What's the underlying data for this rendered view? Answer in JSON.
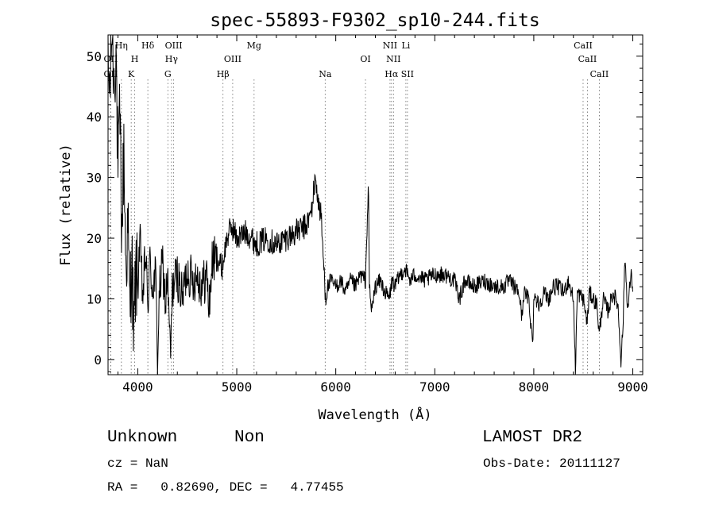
{
  "chart_data": {
    "type": "line",
    "title": "spec-55893-F9302_sp10-244.fits",
    "xlabel": "Wavelength (Å)",
    "ylabel": "Flux (relative)",
    "xlim": [
      3700,
      9100
    ],
    "ylim": [
      -2.5,
      53.5
    ],
    "xticks": [
      4000,
      5000,
      6000,
      7000,
      8000,
      9000
    ],
    "yticks": [
      0,
      10,
      20,
      30,
      40,
      50
    ],
    "grid": false,
    "series": [
      {
        "name": "",
        "anchors": [
          [
            3700,
            47
          ],
          [
            3720,
            45
          ],
          [
            3740,
            55
          ],
          [
            3760,
            46
          ],
          [
            3780,
            52
          ],
          [
            3800,
            30
          ],
          [
            3820,
            40
          ],
          [
            3840,
            20
          ],
          [
            3860,
            35
          ],
          [
            3880,
            15
          ],
          [
            3900,
            22
          ],
          [
            3920,
            8
          ],
          [
            3940,
            18
          ],
          [
            3960,
            2
          ],
          [
            3980,
            15
          ],
          [
            4000,
            12
          ],
          [
            4020,
            20
          ],
          [
            4050,
            10
          ],
          [
            4080,
            18
          ],
          [
            4100,
            8
          ],
          [
            4120,
            16
          ],
          [
            4150,
            12
          ],
          [
            4180,
            14
          ],
          [
            4200,
            0
          ],
          [
            4220,
            11
          ],
          [
            4250,
            16
          ],
          [
            4280,
            9
          ],
          [
            4300,
            14
          ],
          [
            4330,
            0
          ],
          [
            4350,
            12
          ],
          [
            4400,
            14
          ],
          [
            4450,
            10
          ],
          [
            4500,
            15
          ],
          [
            4550,
            13
          ],
          [
            4600,
            14
          ],
          [
            4650,
            12
          ],
          [
            4700,
            14
          ],
          [
            4720,
            8
          ],
          [
            4750,
            16
          ],
          [
            4800,
            17
          ],
          [
            4850,
            15
          ],
          [
            4900,
            20
          ],
          [
            4950,
            22
          ],
          [
            5000,
            20
          ],
          [
            5100,
            21
          ],
          [
            5200,
            19
          ],
          [
            5300,
            20
          ],
          [
            5400,
            19
          ],
          [
            5500,
            20
          ],
          [
            5600,
            21
          ],
          [
            5700,
            22
          ],
          [
            5750,
            24
          ],
          [
            5780,
            28
          ],
          [
            5800,
            30
          ],
          [
            5820,
            26
          ],
          [
            5850,
            24
          ],
          [
            5880,
            15
          ],
          [
            5900,
            10
          ],
          [
            5920,
            12
          ],
          [
            5950,
            13
          ],
          [
            6000,
            12
          ],
          [
            6050,
            13
          ],
          [
            6100,
            11
          ],
          [
            6150,
            13
          ],
          [
            6200,
            12
          ],
          [
            6250,
            14
          ],
          [
            6300,
            13
          ],
          [
            6330,
            29
          ],
          [
            6340,
            12
          ],
          [
            6360,
            8
          ],
          [
            6400,
            12
          ],
          [
            6450,
            13
          ],
          [
            6500,
            11
          ],
          [
            6540,
            10
          ],
          [
            6570,
            13
          ],
          [
            6600,
            12
          ],
          [
            6650,
            14
          ],
          [
            6700,
            15
          ],
          [
            6750,
            13
          ],
          [
            6800,
            14
          ],
          [
            6900,
            13
          ],
          [
            7000,
            14
          ],
          [
            7100,
            14
          ],
          [
            7200,
            13
          ],
          [
            7250,
            10
          ],
          [
            7300,
            13
          ],
          [
            7400,
            12
          ],
          [
            7500,
            13
          ],
          [
            7600,
            12
          ],
          [
            7700,
            12
          ],
          [
            7750,
            13
          ],
          [
            7850,
            11
          ],
          [
            7880,
            7
          ],
          [
            7900,
            11
          ],
          [
            7950,
            10
          ],
          [
            7990,
            2
          ],
          [
            8000,
            11
          ],
          [
            8050,
            9
          ],
          [
            8100,
            11
          ],
          [
            8150,
            10
          ],
          [
            8200,
            12
          ],
          [
            8250,
            12
          ],
          [
            8300,
            11
          ],
          [
            8350,
            13
          ],
          [
            8400,
            10
          ],
          [
            8420,
            -2
          ],
          [
            8440,
            11
          ],
          [
            8500,
            10
          ],
          [
            8540,
            6
          ],
          [
            8560,
            11
          ],
          [
            8600,
            10
          ],
          [
            8640,
            9
          ],
          [
            8660,
            4
          ],
          [
            8700,
            10
          ],
          [
            8750,
            8
          ],
          [
            8800,
            11
          ],
          [
            8850,
            9
          ],
          [
            8880,
            0
          ],
          [
            8900,
            5
          ],
          [
            8920,
            17
          ],
          [
            8950,
            8
          ],
          [
            8980,
            14
          ],
          [
            9000,
            12
          ]
        ]
      }
    ],
    "lines": [
      {
        "label": "OII",
        "x": 3727,
        "row": 1
      },
      {
        "label": "OII",
        "x": 3727,
        "row": 2
      },
      {
        "label": "Hη",
        "x": 3835,
        "row": 0
      },
      {
        "label": "H",
        "x": 3969,
        "row": 1
      },
      {
        "label": "K",
        "x": 3934,
        "row": 2
      },
      {
        "label": "Hδ",
        "x": 4102,
        "row": 0
      },
      {
        "label": "OIII",
        "x": 4363,
        "row": 0
      },
      {
        "label": "Hγ",
        "x": 4341,
        "row": 1
      },
      {
        "label": "G",
        "x": 4304,
        "row": 2
      },
      {
        "label": "Hβ",
        "x": 4861,
        "row": 2
      },
      {
        "label": "OIII",
        "x": 4959,
        "row": 1
      },
      {
        "label": "Mg",
        "x": 5175,
        "row": 0
      },
      {
        "label": "Na",
        "x": 5893,
        "row": 2
      },
      {
        "label": "OI",
        "x": 6300,
        "row": 1
      },
      {
        "label": "NII",
        "x": 6548,
        "row": 0
      },
      {
        "label": "NII",
        "x": 6583,
        "row": 1
      },
      {
        "label": "Hα",
        "x": 6563,
        "row": 2
      },
      {
        "label": "Li",
        "x": 6708,
        "row": 0
      },
      {
        "label": "SII",
        "x": 6724,
        "row": 2
      },
      {
        "label": "CaII",
        "x": 8498,
        "row": 0
      },
      {
        "label": "CaII",
        "x": 8542,
        "row": 1
      },
      {
        "label": "CaII",
        "x": 8662,
        "row": 2
      }
    ]
  },
  "info": {
    "class": "Unknown",
    "subclass": "Non",
    "survey": "LAMOST DR2",
    "cz": "cz = NaN",
    "obs_date": "Obs-Date: 20111127",
    "coords": "RA =   0.82690, DEC =   4.77455"
  }
}
